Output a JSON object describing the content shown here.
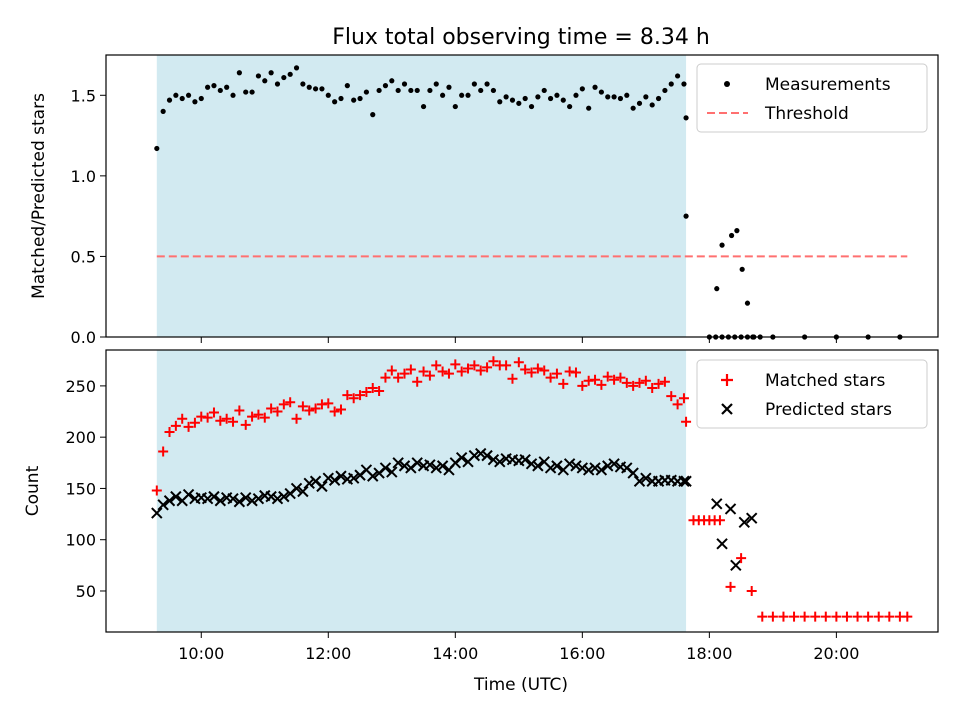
{
  "chart_data": [
    {
      "type": "scatter",
      "title": "Flux total observing time = 8.34 h",
      "ylabel": "Matched/Predicted stars",
      "xlabel": "",
      "ylim": [
        0,
        1.75
      ],
      "y_ticks": [
        "0.0",
        "0.5",
        "1.0",
        "1.5"
      ],
      "x_ticks": [
        "10:00",
        "12:00",
        "14:00",
        "16:00",
        "18:00",
        "20:00"
      ],
      "shaded_x_range": [
        "09:18",
        "17:38"
      ],
      "shade_color": "#add8e6",
      "legend_position": "upper right",
      "series": [
        {
          "name": "Measurements",
          "color": "#000000",
          "marker": "dot",
          "x": [
            "09:18",
            "09:24",
            "09:30",
            "09:36",
            "09:42",
            "09:48",
            "09:54",
            "10:00",
            "10:06",
            "10:12",
            "10:18",
            "10:24",
            "10:30",
            "10:36",
            "10:42",
            "10:48",
            "10:54",
            "11:00",
            "11:06",
            "11:12",
            "11:18",
            "11:24",
            "11:30",
            "11:36",
            "11:42",
            "11:48",
            "11:54",
            "12:00",
            "12:06",
            "12:12",
            "12:18",
            "12:24",
            "12:30",
            "12:36",
            "12:42",
            "12:48",
            "12:54",
            "13:00",
            "13:06",
            "13:12",
            "13:18",
            "13:24",
            "13:30",
            "13:36",
            "13:42",
            "13:48",
            "13:54",
            "14:00",
            "14:06",
            "14:12",
            "14:18",
            "14:24",
            "14:30",
            "14:36",
            "14:42",
            "14:48",
            "14:54",
            "15:00",
            "15:06",
            "15:12",
            "15:18",
            "15:24",
            "15:30",
            "15:36",
            "15:42",
            "15:48",
            "15:54",
            "16:00",
            "16:06",
            "16:12",
            "16:18",
            "16:24",
            "16:30",
            "16:36",
            "16:42",
            "16:48",
            "16:54",
            "17:00",
            "17:06",
            "17:12",
            "17:18",
            "17:24",
            "17:30",
            "17:36",
            "17:38",
            "18:00",
            "18:06",
            "18:12",
            "18:18",
            "18:24",
            "18:30",
            "18:36",
            "18:42",
            "18:48",
            "19:00",
            "19:30",
            "20:00",
            "20:30",
            "21:00"
          ],
          "y": [
            1.17,
            1.4,
            1.47,
            1.5,
            1.48,
            1.5,
            1.46,
            1.48,
            1.55,
            1.56,
            1.53,
            1.55,
            1.5,
            1.64,
            1.52,
            1.52,
            1.62,
            1.59,
            1.64,
            1.57,
            1.61,
            1.63,
            1.67,
            1.57,
            1.55,
            1.54,
            1.54,
            1.5,
            1.46,
            1.48,
            1.56,
            1.47,
            1.48,
            1.52,
            1.38,
            1.53,
            1.56,
            1.59,
            1.53,
            1.57,
            1.53,
            1.53,
            1.43,
            1.53,
            1.57,
            1.5,
            1.55,
            1.43,
            1.5,
            1.5,
            1.57,
            1.53,
            1.57,
            1.53,
            1.46,
            1.49,
            1.47,
            1.45,
            1.48,
            1.43,
            1.49,
            1.53,
            1.48,
            1.5,
            1.47,
            1.43,
            1.5,
            1.54,
            1.42,
            1.55,
            1.52,
            1.49,
            1.49,
            1.48,
            1.5,
            1.42,
            1.45,
            1.49,
            1.44,
            1.48,
            1.53,
            1.57,
            1.62,
            1.57,
            1.36,
            0.0,
            0.0,
            0.0,
            0.0,
            0.0,
            0.0,
            0.0,
            0.0,
            0.0,
            0.0,
            0.0,
            0.0,
            0.0,
            0.0
          ]
        },
        {
          "name": "Threshold",
          "color": "#ff7070",
          "style": "dashed",
          "x": [
            "09:18",
            "21:07"
          ],
          "y": [
            0.5,
            0.5
          ]
        }
      ],
      "extra_points": {
        "x": [
          "17:38",
          "18:07",
          "18:12",
          "18:21",
          "18:26",
          "18:31",
          "18:36",
          "18:41"
        ],
        "y": [
          0.75,
          0.3,
          0.57,
          0.63,
          0.66,
          0.42,
          0.21,
          0.0
        ]
      }
    },
    {
      "type": "scatter",
      "title": "",
      "ylabel": "Count",
      "xlabel": "Time (UTC)",
      "ylim": [
        10,
        285
      ],
      "y_ticks": [
        "50",
        "100",
        "150",
        "200",
        "250"
      ],
      "x_ticks": [
        "10:00",
        "12:00",
        "14:00",
        "16:00",
        "18:00",
        "20:00"
      ],
      "legend_position": "upper right",
      "series": [
        {
          "name": "Matched stars",
          "color": "#ff0000",
          "marker": "plus",
          "x": [
            "09:18",
            "09:24",
            "09:30",
            "09:36",
            "09:42",
            "09:48",
            "09:54",
            "10:00",
            "10:06",
            "10:12",
            "10:18",
            "10:24",
            "10:30",
            "10:36",
            "10:42",
            "10:48",
            "10:54",
            "11:00",
            "11:06",
            "11:12",
            "11:18",
            "11:24",
            "11:30",
            "11:36",
            "11:42",
            "11:48",
            "11:54",
            "12:00",
            "12:06",
            "12:12",
            "12:18",
            "12:24",
            "12:30",
            "12:36",
            "12:42",
            "12:48",
            "12:54",
            "13:00",
            "13:06",
            "13:12",
            "13:18",
            "13:24",
            "13:30",
            "13:36",
            "13:42",
            "13:48",
            "13:54",
            "14:00",
            "14:06",
            "14:12",
            "14:18",
            "14:24",
            "14:30",
            "14:36",
            "14:42",
            "14:48",
            "14:54",
            "15:00",
            "15:06",
            "15:12",
            "15:18",
            "15:24",
            "15:30",
            "15:36",
            "15:42",
            "15:48",
            "15:54",
            "16:00",
            "16:06",
            "16:12",
            "16:18",
            "16:24",
            "16:30",
            "16:36",
            "16:42",
            "16:48",
            "16:54",
            "17:00",
            "17:06",
            "17:12",
            "17:18",
            "17:24",
            "17:30",
            "17:36",
            "17:38",
            "17:45",
            "17:50",
            "17:55",
            "18:00",
            "18:05",
            "18:10",
            "18:20",
            "18:30",
            "18:40",
            "18:50",
            "19:00",
            "19:10",
            "19:20",
            "19:30",
            "19:40",
            "19:50",
            "20:00",
            "20:10",
            "20:20",
            "20:30",
            "20:40",
            "20:50",
            "21:00",
            "21:07"
          ],
          "y": [
            148,
            186,
            205,
            211,
            218,
            210,
            214,
            220,
            219,
            224,
            216,
            218,
            215,
            226,
            212,
            220,
            222,
            219,
            228,
            225,
            232,
            234,
            218,
            230,
            226,
            228,
            232,
            233,
            225,
            227,
            241,
            238,
            241,
            244,
            248,
            245,
            258,
            265,
            258,
            262,
            266,
            254,
            264,
            260,
            270,
            264,
            262,
            271,
            264,
            267,
            270,
            265,
            268,
            274,
            270,
            270,
            257,
            273,
            266,
            263,
            267,
            265,
            258,
            262,
            252,
            264,
            263,
            250,
            255,
            256,
            251,
            259,
            256,
            258,
            253,
            250,
            253,
            255,
            248,
            252,
            254,
            240,
            232,
            238,
            215,
            119,
            119,
            119,
            119,
            119,
            119,
            54,
            82,
            50,
            25,
            25,
            25,
            25,
            25,
            25,
            25,
            25,
            25,
            25,
            25,
            25,
            25,
            25,
            25
          ]
        },
        {
          "name": "Predicted stars",
          "color": "#000000",
          "marker": "x",
          "x": [
            "09:18",
            "09:24",
            "09:30",
            "09:36",
            "09:42",
            "09:48",
            "09:54",
            "10:00",
            "10:06",
            "10:12",
            "10:18",
            "10:24",
            "10:30",
            "10:36",
            "10:42",
            "10:48",
            "10:54",
            "11:00",
            "11:06",
            "11:12",
            "11:18",
            "11:24",
            "11:30",
            "11:36",
            "11:42",
            "11:48",
            "11:54",
            "12:00",
            "12:06",
            "12:12",
            "12:18",
            "12:24",
            "12:30",
            "12:36",
            "12:42",
            "12:48",
            "12:54",
            "13:00",
            "13:06",
            "13:12",
            "13:18",
            "13:24",
            "13:30",
            "13:36",
            "13:42",
            "13:48",
            "13:54",
            "14:00",
            "14:06",
            "14:12",
            "14:18",
            "14:24",
            "14:30",
            "14:36",
            "14:42",
            "14:48",
            "14:54",
            "15:00",
            "15:06",
            "15:12",
            "15:18",
            "15:24",
            "15:30",
            "15:36",
            "15:42",
            "15:48",
            "15:54",
            "16:00",
            "16:06",
            "16:12",
            "16:18",
            "16:24",
            "16:30",
            "16:36",
            "16:42",
            "16:48",
            "16:54",
            "17:00",
            "17:06",
            "17:12",
            "17:18",
            "17:24",
            "17:30",
            "17:36",
            "17:38",
            "18:07",
            "18:12",
            "18:20",
            "18:25",
            "18:33",
            "18:40"
          ],
          "y": [
            126,
            134,
            138,
            142,
            138,
            144,
            140,
            141,
            140,
            142,
            138,
            141,
            140,
            137,
            141,
            138,
            140,
            143,
            142,
            140,
            142,
            145,
            150,
            147,
            155,
            157,
            152,
            160,
            158,
            162,
            159,
            160,
            163,
            168,
            162,
            165,
            170,
            166,
            175,
            172,
            170,
            175,
            172,
            173,
            170,
            172,
            168,
            175,
            180,
            176,
            182,
            184,
            182,
            178,
            176,
            179,
            178,
            177,
            178,
            174,
            172,
            176,
            170,
            172,
            168,
            174,
            172,
            170,
            168,
            170,
            168,
            172,
            174,
            171,
            170,
            165,
            157,
            160,
            157,
            157,
            158,
            158,
            157,
            157,
            157,
            135,
            96,
            130,
            75,
            117,
            121
          ]
        }
      ]
    }
  ]
}
